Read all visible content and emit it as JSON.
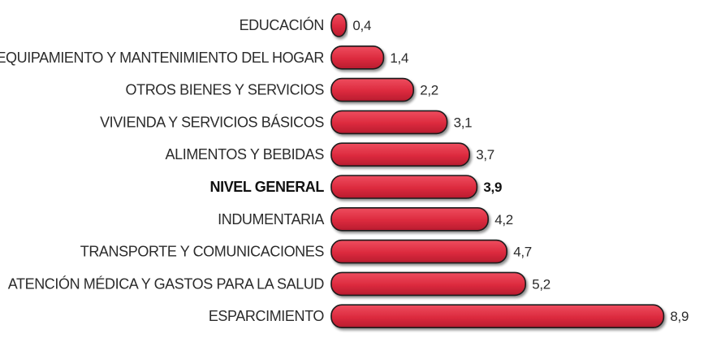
{
  "chart_data": {
    "type": "bar",
    "orientation": "horizontal",
    "title": "",
    "xlabel": "",
    "ylabel": "",
    "grid": false,
    "xlim": [
      0,
      9
    ],
    "bar_color": "#dc2a3e",
    "highlight_category": "NIVEL GENERAL",
    "categories": [
      "EDUCACIÓN",
      "EQUIPAMIENTO Y MANTENIMIENTO DEL HOGAR",
      "OTROS BIENES Y SERVICIOS",
      "VIVIENDA Y SERVICIOS BÁSICOS",
      "ALIMENTOS Y BEBIDAS",
      "NIVEL GENERAL",
      "INDUMENTARIA",
      "TRANSPORTE Y COMUNICACIONES",
      "ATENCIÓN MÉDICA Y GASTOS PARA LA SALUD",
      "ESPARCIMIENTO"
    ],
    "values": [
      0.4,
      1.4,
      2.2,
      3.1,
      3.7,
      3.9,
      4.2,
      4.7,
      5.2,
      8.9
    ],
    "value_labels": [
      "0,4",
      "1,4",
      "2,2",
      "3,1",
      "3,7",
      "3,9",
      "4,2",
      "4,7",
      "5,2",
      "8,9"
    ]
  }
}
